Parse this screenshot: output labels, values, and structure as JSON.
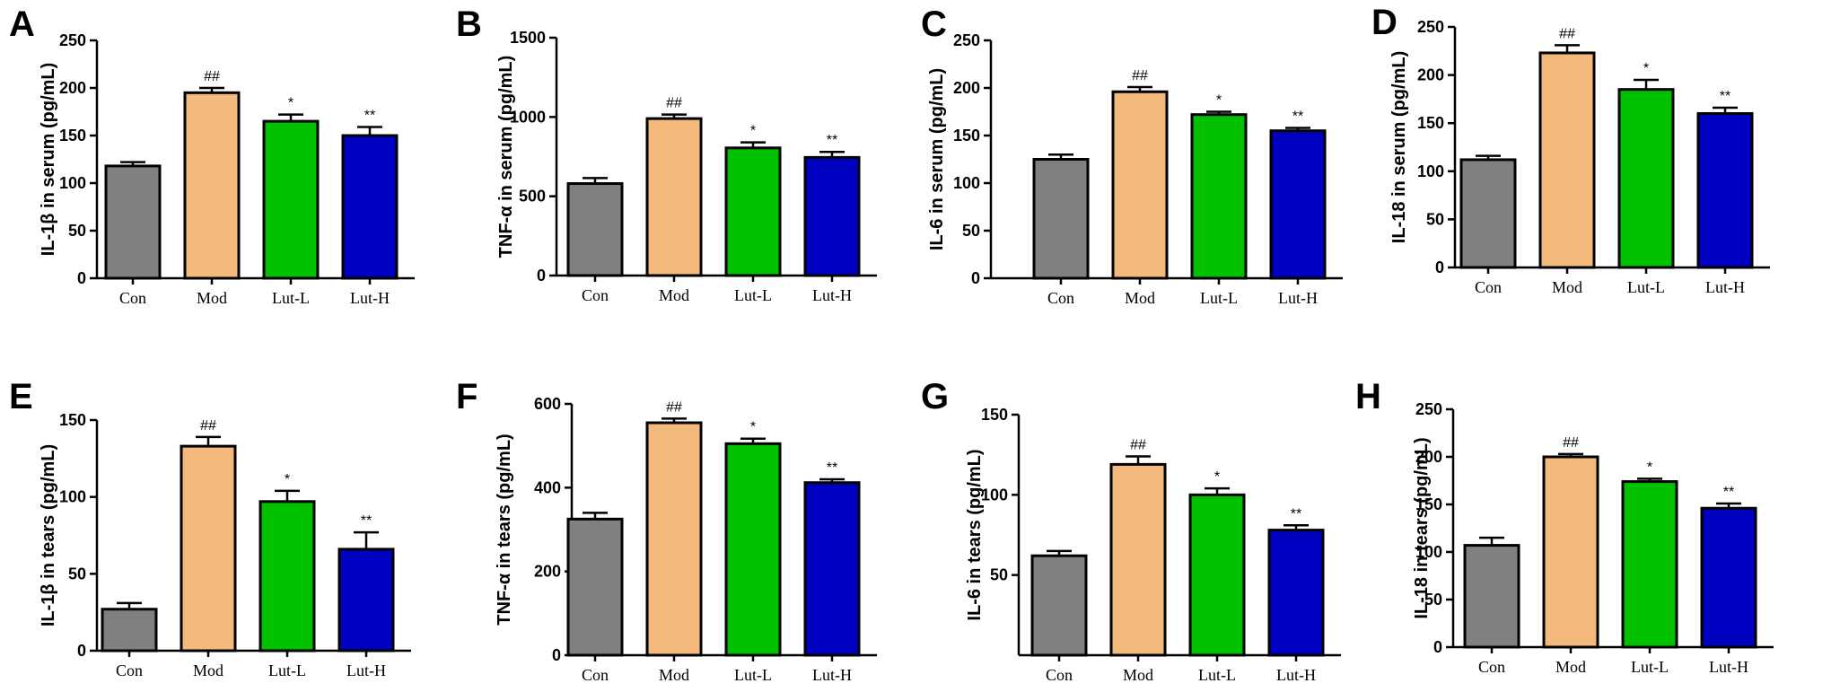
{
  "chart_data": [
    {
      "panel": "A",
      "type": "bar",
      "categories": [
        "Con",
        "Mod",
        "Lut-L",
        "Lut-H"
      ],
      "values": [
        118,
        195,
        165,
        150
      ],
      "errors": [
        4,
        5,
        7,
        9
      ],
      "significance": [
        "",
        "##",
        "*",
        "**"
      ],
      "ylabel": "IL-1β in serum (pg/mL)",
      "ylim": [
        0,
        250
      ],
      "yticks": [
        0,
        50,
        100,
        150,
        200,
        250
      ],
      "colors": [
        "#808080",
        "#f3b97d",
        "#00c000",
        "#0000c0"
      ]
    },
    {
      "panel": "B",
      "type": "bar",
      "categories": [
        "Con",
        "Mod",
        "Lut-L",
        "Lut-H"
      ],
      "values": [
        580,
        990,
        805,
        745
      ],
      "errors": [
        35,
        25,
        35,
        35
      ],
      "significance": [
        "",
        "##",
        "*",
        "**"
      ],
      "ylabel": "TNF-α in serum (pg/mL)",
      "ylim": [
        0,
        1500
      ],
      "yticks": [
        0,
        500,
        1000,
        1500
      ],
      "colors": [
        "#808080",
        "#f3b97d",
        "#00c000",
        "#0000c0"
      ]
    },
    {
      "panel": "C",
      "type": "bar",
      "categories": [
        "Con",
        "Mod",
        "Lut-L",
        "Lut-H"
      ],
      "values": [
        125,
        196,
        172,
        155
      ],
      "errors": [
        5,
        5,
        3,
        3
      ],
      "significance": [
        "",
        "##",
        "*",
        "**"
      ],
      "ylabel": "IL-6 in serum (pg/mL)",
      "ylim": [
        0,
        250
      ],
      "yticks": [
        0,
        50,
        100,
        150,
        200,
        250
      ],
      "colors": [
        "#808080",
        "#f3b97d",
        "#00c000",
        "#0000c0"
      ]
    },
    {
      "panel": "D",
      "type": "bar",
      "categories": [
        "Con",
        "Mod",
        "Lut-L",
        "Lut-H"
      ],
      "values": [
        112,
        223,
        185,
        160
      ],
      "errors": [
        4,
        8,
        10,
        6
      ],
      "significance": [
        "",
        "##",
        "*",
        "**"
      ],
      "ylabel": "IL-18 in serum (pg/mL)",
      "ylim": [
        0,
        250
      ],
      "yticks": [
        0,
        50,
        100,
        150,
        200,
        250
      ],
      "colors": [
        "#808080",
        "#f3b97d",
        "#00c000",
        "#0000c0"
      ]
    },
    {
      "panel": "E",
      "type": "bar",
      "categories": [
        "Con",
        "Mod",
        "Lut-L",
        "Lut-H"
      ],
      "values": [
        27,
        133,
        97,
        66
      ],
      "errors": [
        4,
        6,
        7,
        11
      ],
      "significance": [
        "",
        "##",
        "*",
        "**"
      ],
      "ylabel": "IL-1β in tears (pg/mL)",
      "ylim": [
        0,
        150
      ],
      "yticks": [
        0,
        50,
        100,
        150
      ],
      "colors": [
        "#808080",
        "#f3b97d",
        "#00c000",
        "#0000c0"
      ]
    },
    {
      "panel": "F",
      "type": "bar",
      "categories": [
        "Con",
        "Mod",
        "Lut-L",
        "Lut-H"
      ],
      "values": [
        325,
        555,
        505,
        412
      ],
      "errors": [
        15,
        10,
        12,
        8
      ],
      "significance": [
        "",
        "##",
        "*",
        "**"
      ],
      "ylabel": "TNF-α in tears (pg/mL)",
      "ylim": [
        0,
        600
      ],
      "yticks": [
        0,
        200,
        400,
        600
      ],
      "colors": [
        "#808080",
        "#f3b97d",
        "#00c000",
        "#0000c0"
      ]
    },
    {
      "panel": "G",
      "type": "bar",
      "categories": [
        "Con",
        "Mod",
        "Lut-L",
        "Lut-H"
      ],
      "values": [
        62,
        119,
        100,
        78
      ],
      "errors": [
        3,
        5,
        4,
        3
      ],
      "significance": [
        "",
        "##",
        "*",
        "**"
      ],
      "ylabel": "IL-6 in tears (pg/mL)",
      "ylim": [
        0,
        150
      ],
      "yticks": [
        50,
        100,
        150
      ],
      "colors": [
        "#808080",
        "#f3b97d",
        "#00c000",
        "#0000c0"
      ]
    },
    {
      "panel": "H",
      "type": "bar",
      "categories": [
        "Con",
        "Mod",
        "Lut-L",
        "Lut-H"
      ],
      "values": [
        107,
        200,
        174,
        146
      ],
      "errors": [
        8,
        3,
        3,
        5
      ],
      "significance": [
        "",
        "##",
        "*",
        "**"
      ],
      "ylabel": "IL-18 in tears (pg/mL)",
      "ylim": [
        0,
        250
      ],
      "yticks": [
        0,
        50,
        100,
        150,
        200,
        250
      ],
      "colors": [
        "#808080",
        "#f3b97d",
        "#00c000",
        "#0000c0"
      ]
    }
  ]
}
